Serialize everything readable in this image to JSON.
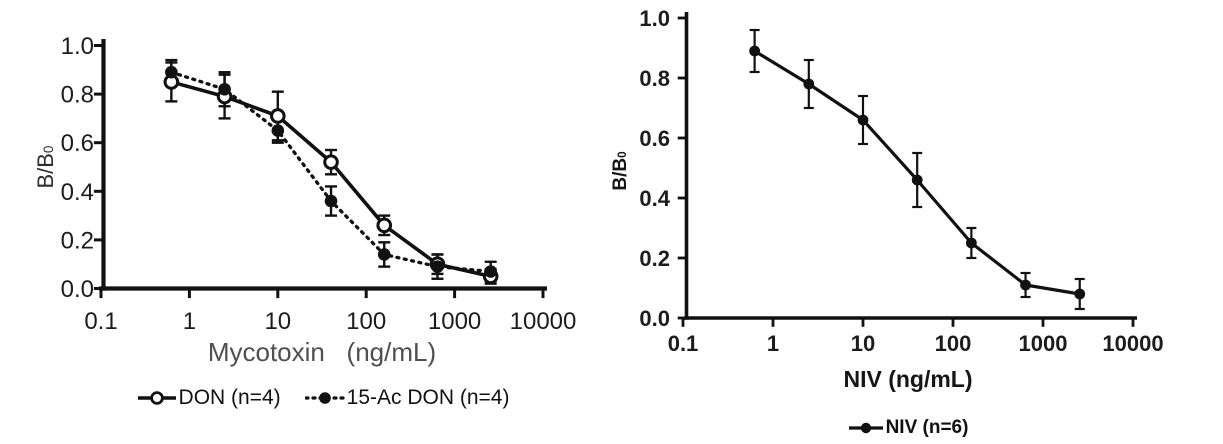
{
  "colors": {
    "ink": "#111111",
    "axis_text": "#1c1c1c",
    "muted_label": "#4f4f4f",
    "background": "#ffffff"
  },
  "chart_data": [
    {
      "type": "line",
      "title": "",
      "xlabel": "Mycotoxin   (ng/mL)",
      "ylabel_main": "B/B",
      "ylabel_sub": "0",
      "xscale": "log",
      "xlim": [
        0.1,
        10000
      ],
      "ylim": [
        0.0,
        1.0
      ],
      "grid": false,
      "legend_position": "bottom",
      "xticks": [
        0.1,
        1,
        10,
        100,
        1000,
        10000
      ],
      "xtick_labels": [
        "0.1",
        "1",
        "10",
        "100",
        "1000",
        "10000"
      ],
      "ytick_values": [
        1.0,
        0.8,
        0.6,
        0.4,
        0.2,
        0.0
      ],
      "ytick_labels": [
        "1.0",
        "0.8",
        "0.6",
        "0.4",
        "0.2",
        "0.0"
      ],
      "x": [
        0.625,
        2.5,
        10,
        40,
        160,
        640,
        2560
      ],
      "series": [
        {
          "name": "DON (n=4)",
          "marker": "open-circle",
          "line_style": "solid",
          "values": [
            0.85,
            0.79,
            0.71,
            0.52,
            0.26,
            0.1,
            0.05
          ],
          "errors": [
            0.08,
            0.09,
            0.1,
            0.05,
            0.04,
            0.04,
            0.03
          ]
        },
        {
          "name": "15-Ac DON (n=4)",
          "marker": "filled-circle",
          "line_style": "dotted",
          "values": [
            0.89,
            0.82,
            0.65,
            0.36,
            0.14,
            0.09,
            0.07
          ],
          "errors": [
            0.05,
            0.07,
            0.05,
            0.06,
            0.05,
            0.05,
            0.04
          ]
        }
      ]
    },
    {
      "type": "line",
      "title": "",
      "xlabel": "NIV (ng/mL)",
      "ylabel_main": "B/B",
      "ylabel_sub": "0",
      "xscale": "log",
      "xlim": [
        0.1,
        10000
      ],
      "ylim": [
        0.0,
        1.0
      ],
      "grid": false,
      "legend_position": "bottom",
      "xticks": [
        0.1,
        1,
        10,
        100,
        1000,
        10000
      ],
      "xtick_labels": [
        "0.1",
        "1",
        "10",
        "100",
        "1000",
        "10000"
      ],
      "ytick_values": [
        1.0,
        0.8,
        0.6,
        0.4,
        0.2,
        0.0
      ],
      "ytick_labels": [
        "1.0",
        "0.8",
        "0.6",
        "0.4",
        "0.2",
        "0.0"
      ],
      "x": [
        0.625,
        2.5,
        10,
        40,
        160,
        640,
        2560
      ],
      "series": [
        {
          "name": "NIV (n=6)",
          "marker": "filled-circle",
          "line_style": "solid",
          "values": [
            0.89,
            0.78,
            0.66,
            0.46,
            0.25,
            0.11,
            0.08
          ],
          "errors": [
            0.07,
            0.08,
            0.08,
            0.09,
            0.05,
            0.04,
            0.05
          ]
        }
      ]
    }
  ]
}
